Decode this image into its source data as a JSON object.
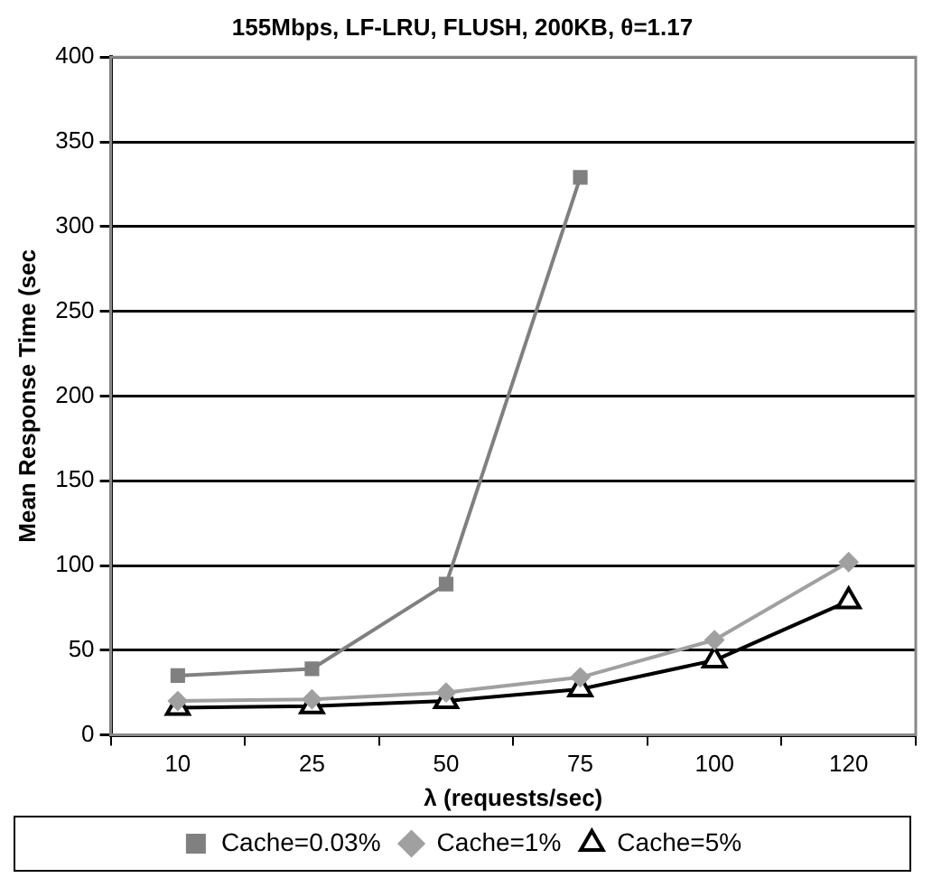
{
  "chart_data": {
    "type": "line",
    "title": "155Mbps, LF-LRU, FLUSH, 200KB, θ=1.17",
    "xlabel": "λ (requests/sec)",
    "ylabel": "Mean Response Time (sec",
    "categories": [
      "10",
      "25",
      "50",
      "75",
      "100",
      "120"
    ],
    "series": [
      {
        "name": "Cache=0.03%",
        "color": "#808080",
        "marker": "square",
        "values": [
          35,
          39,
          89,
          329,
          null,
          null
        ]
      },
      {
        "name": "Cache=1%",
        "color": "#a0a0a0",
        "marker": "diamond",
        "values": [
          20,
          21,
          25,
          34,
          56,
          102
        ]
      },
      {
        "name": "Cache=5%",
        "color": "#000000",
        "marker": "triangle",
        "values": [
          16,
          17,
          20,
          27,
          44,
          79
        ]
      }
    ],
    "ylim": [
      0,
      400
    ],
    "yticks": [
      0,
      50,
      100,
      150,
      200,
      250,
      300,
      350,
      400
    ],
    "grid": "y",
    "legend": "bottom",
    "line_style": "solid"
  }
}
